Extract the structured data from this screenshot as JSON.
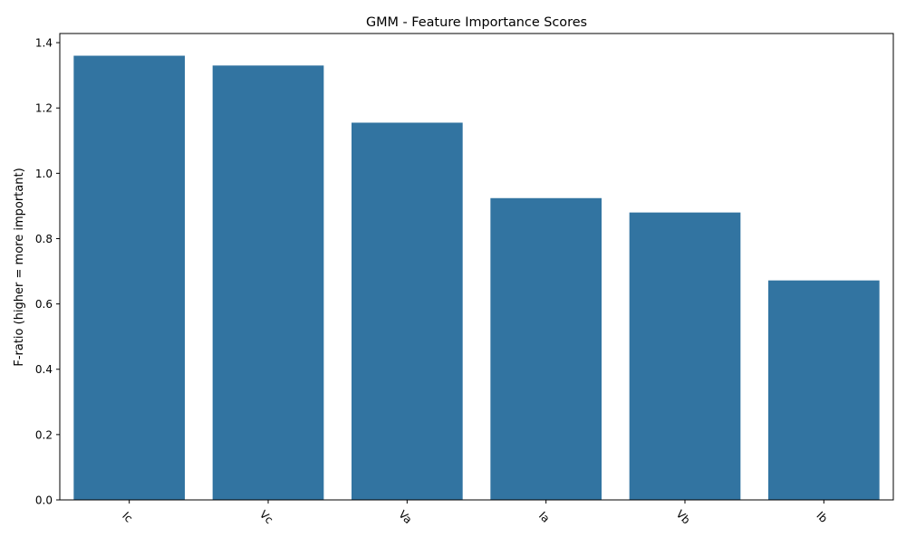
{
  "chart_data": {
    "type": "bar",
    "title": "GMM - Feature Importance Scores",
    "xlabel": "",
    "ylabel": "F-ratio (higher = more important)",
    "categories": [
      "Ic",
      "Vc",
      "Va",
      "Ia",
      "Vb",
      "Ib"
    ],
    "values": [
      1.36,
      1.33,
      1.155,
      0.924,
      0.88,
      0.672
    ],
    "ylim": [
      0,
      1.428
    ],
    "yticks": [
      "0.0",
      "0.2",
      "0.4",
      "0.6",
      "0.8",
      "1.0",
      "1.2",
      "1.4"
    ],
    "bar_color": "#3274a1",
    "grid": false,
    "legend": "none",
    "x_tick_rotation_deg": 45
  }
}
